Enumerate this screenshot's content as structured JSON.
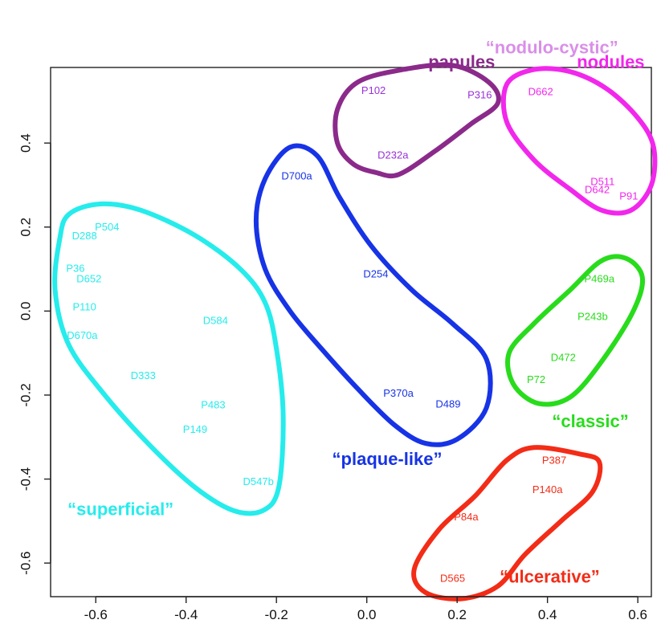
{
  "chart_data": {
    "type": "scatter",
    "title": "",
    "xlabel": "",
    "ylabel": "",
    "xlim": [
      -0.7,
      0.63
    ],
    "ylim": [
      -0.68,
      0.58
    ],
    "xticks": [
      {
        "value": -0.6,
        "label": "-0.6"
      },
      {
        "value": -0.4,
        "label": "-0.4"
      },
      {
        "value": -0.2,
        "label": "-0.2"
      },
      {
        "value": 0.0,
        "label": "0.0"
      },
      {
        "value": 0.2,
        "label": "0.2"
      },
      {
        "value": 0.4,
        "label": "0.4"
      },
      {
        "value": 0.6,
        "label": "0.6"
      }
    ],
    "yticks": [
      {
        "value": -0.6,
        "label": "-0.6"
      },
      {
        "value": -0.4,
        "label": "-0.4"
      },
      {
        "value": -0.2,
        "label": "-0.2"
      },
      {
        "value": 0.0,
        "label": "0.0"
      },
      {
        "value": 0.2,
        "label": "0.2"
      },
      {
        "value": 0.4,
        "label": "0.4"
      }
    ],
    "grid": false,
    "points": [
      {
        "label": "P504",
        "x": -0.575,
        "y": 0.198,
        "color": "#26ecec"
      },
      {
        "label": "D288",
        "x": -0.625,
        "y": 0.177,
        "color": "#26ecec"
      },
      {
        "label": "P36",
        "x": -0.645,
        "y": 0.1,
        "color": "#26ecec"
      },
      {
        "label": "D652",
        "x": -0.615,
        "y": 0.075,
        "color": "#26ecec"
      },
      {
        "label": "P110",
        "x": -0.625,
        "y": 0.008,
        "color": "#26ecec"
      },
      {
        "label": "D670a",
        "x": -0.63,
        "y": -0.06,
        "color": "#26ecec"
      },
      {
        "label": "D584",
        "x": -0.335,
        "y": -0.024,
        "color": "#26ecec"
      },
      {
        "label": "D333",
        "x": -0.495,
        "y": -0.155,
        "color": "#26ecec"
      },
      {
        "label": "P483",
        "x": -0.34,
        "y": -0.225,
        "color": "#26ecec"
      },
      {
        "label": "P149",
        "x": -0.38,
        "y": -0.283,
        "color": "#26ecec"
      },
      {
        "label": "D547b",
        "x": -0.24,
        "y": -0.408,
        "color": "#26ecec"
      },
      {
        "label": "D700a",
        "x": -0.155,
        "y": 0.32,
        "color": "#1733e6"
      },
      {
        "label": "D254",
        "x": 0.02,
        "y": 0.087,
        "color": "#1733e6"
      },
      {
        "label": "P370a",
        "x": 0.07,
        "y": -0.197,
        "color": "#1733e6"
      },
      {
        "label": "D489",
        "x": 0.18,
        "y": -0.223,
        "color": "#1733e6"
      },
      {
        "label": "P102",
        "x": 0.015,
        "y": 0.523,
        "color": "#9a30d8"
      },
      {
        "label": "P316",
        "x": 0.25,
        "y": 0.513,
        "color": "#9a30d8"
      },
      {
        "label": "D232a",
        "x": 0.058,
        "y": 0.37,
        "color": "#9a30d8"
      },
      {
        "label": "D662",
        "x": 0.385,
        "y": 0.521,
        "color": "#f227ec"
      },
      {
        "label": "D511",
        "x": 0.522,
        "y": 0.306,
        "color": "#f227ec"
      },
      {
        "label": "D642",
        "x": 0.51,
        "y": 0.287,
        "color": "#f227ec"
      },
      {
        "label": "P91",
        "x": 0.58,
        "y": 0.272,
        "color": "#f227ec"
      },
      {
        "label": "P469a",
        "x": 0.515,
        "y": 0.075,
        "color": "#28dc1c"
      },
      {
        "label": "P243b",
        "x": 0.5,
        "y": -0.015,
        "color": "#28dc1c"
      },
      {
        "label": "D472",
        "x": 0.435,
        "y": -0.112,
        "color": "#28dc1c"
      },
      {
        "label": "P72",
        "x": 0.375,
        "y": -0.165,
        "color": "#28dc1c"
      },
      {
        "label": "P387",
        "x": 0.415,
        "y": -0.357,
        "color": "#f32c17"
      },
      {
        "label": "P140a",
        "x": 0.4,
        "y": -0.427,
        "color": "#f32c17"
      },
      {
        "label": "P84a",
        "x": 0.22,
        "y": -0.492,
        "color": "#f32c17"
      },
      {
        "label": "D565",
        "x": 0.19,
        "y": -0.638,
        "color": "#f32c17"
      }
    ],
    "clusters": [
      {
        "name": "superficial",
        "label": "“superficial”",
        "color": "#26ecec",
        "label_pos": {
          "x": -0.545,
          "y": -0.475
        },
        "outline": [
          [
            -0.68,
            0.17
          ],
          [
            -0.66,
            0.23
          ],
          [
            -0.59,
            0.255
          ],
          [
            -0.5,
            0.24
          ],
          [
            -0.38,
            0.18
          ],
          [
            -0.28,
            0.1
          ],
          [
            -0.225,
            0.02
          ],
          [
            -0.2,
            -0.09
          ],
          [
            -0.185,
            -0.25
          ],
          [
            -0.195,
            -0.42
          ],
          [
            -0.23,
            -0.475
          ],
          [
            -0.295,
            -0.475
          ],
          [
            -0.38,
            -0.42
          ],
          [
            -0.48,
            -0.32
          ],
          [
            -0.58,
            -0.2
          ],
          [
            -0.66,
            -0.08
          ],
          [
            -0.69,
            0.05
          ]
        ]
      },
      {
        "name": "plaque-like",
        "label": "“plaque-like”",
        "color": "#1733e6",
        "label_pos": {
          "x": 0.045,
          "y": -0.355
        },
        "outline": [
          [
            -0.245,
            0.215
          ],
          [
            -0.225,
            0.315
          ],
          [
            -0.17,
            0.39
          ],
          [
            -0.11,
            0.37
          ],
          [
            -0.06,
            0.27
          ],
          [
            0.01,
            0.155
          ],
          [
            0.1,
            0.05
          ],
          [
            0.19,
            -0.03
          ],
          [
            0.265,
            -0.115
          ],
          [
            0.265,
            -0.23
          ],
          [
            0.2,
            -0.305
          ],
          [
            0.13,
            -0.315
          ],
          [
            0.06,
            -0.27
          ],
          [
            -0.02,
            -0.185
          ],
          [
            -0.1,
            -0.09
          ],
          [
            -0.17,
            0.0
          ],
          [
            -0.225,
            0.1
          ]
        ]
      },
      {
        "name": "nodulo-cystic papules",
        "label": "papules",
        "color": "#8b2a8b",
        "label_pos": {
          "x": 0.21,
          "y": 0.59
        },
        "outline": [
          [
            -0.065,
            0.4
          ],
          [
            -0.065,
            0.48
          ],
          [
            -0.02,
            0.545
          ],
          [
            0.08,
            0.575
          ],
          [
            0.19,
            0.585
          ],
          [
            0.27,
            0.545
          ],
          [
            0.29,
            0.495
          ],
          [
            0.23,
            0.445
          ],
          [
            0.15,
            0.38
          ],
          [
            0.07,
            0.325
          ],
          [
            0.02,
            0.33
          ],
          [
            -0.03,
            0.35
          ]
        ]
      },
      {
        "name": "nodulo-cystic nodules",
        "label": "nodules",
        "color": "#f227ec",
        "label_pos": {
          "x": 0.54,
          "y": 0.59
        },
        "outline": [
          [
            0.31,
            0.45
          ],
          [
            0.31,
            0.54
          ],
          [
            0.37,
            0.575
          ],
          [
            0.45,
            0.57
          ],
          [
            0.53,
            0.53
          ],
          [
            0.6,
            0.46
          ],
          [
            0.635,
            0.39
          ],
          [
            0.63,
            0.3
          ],
          [
            0.585,
            0.24
          ],
          [
            0.52,
            0.24
          ],
          [
            0.45,
            0.29
          ],
          [
            0.37,
            0.36
          ]
        ]
      },
      {
        "name": "classic",
        "label": "“classic”",
        "color": "#28dc1c",
        "label_pos": {
          "x": 0.495,
          "y": -0.265
        },
        "outline": [
          [
            0.315,
            -0.1
          ],
          [
            0.325,
            -0.175
          ],
          [
            0.38,
            -0.22
          ],
          [
            0.45,
            -0.205
          ],
          [
            0.52,
            -0.12
          ],
          [
            0.59,
            0.0
          ],
          [
            0.61,
            0.08
          ],
          [
            0.575,
            0.125
          ],
          [
            0.52,
            0.12
          ],
          [
            0.45,
            0.05
          ],
          [
            0.37,
            -0.03
          ]
        ]
      },
      {
        "name": "ulcerative",
        "label": "“ulcerative”",
        "color": "#f32c17",
        "label_pos": {
          "x": 0.405,
          "y": -0.635
        },
        "outline": [
          [
            0.105,
            -0.615
          ],
          [
            0.13,
            -0.67
          ],
          [
            0.21,
            -0.685
          ],
          [
            0.29,
            -0.655
          ],
          [
            0.35,
            -0.58
          ],
          [
            0.43,
            -0.5
          ],
          [
            0.5,
            -0.43
          ],
          [
            0.515,
            -0.36
          ],
          [
            0.47,
            -0.34
          ],
          [
            0.37,
            -0.325
          ],
          [
            0.31,
            -0.355
          ],
          [
            0.24,
            -0.44
          ],
          [
            0.16,
            -0.52
          ]
        ]
      }
    ],
    "annotations": [
      {
        "text": "“nodulo-cystic”",
        "color": "#d98fe8",
        "pos": {
          "x": 0.41,
          "y": 0.625
        }
      }
    ]
  }
}
